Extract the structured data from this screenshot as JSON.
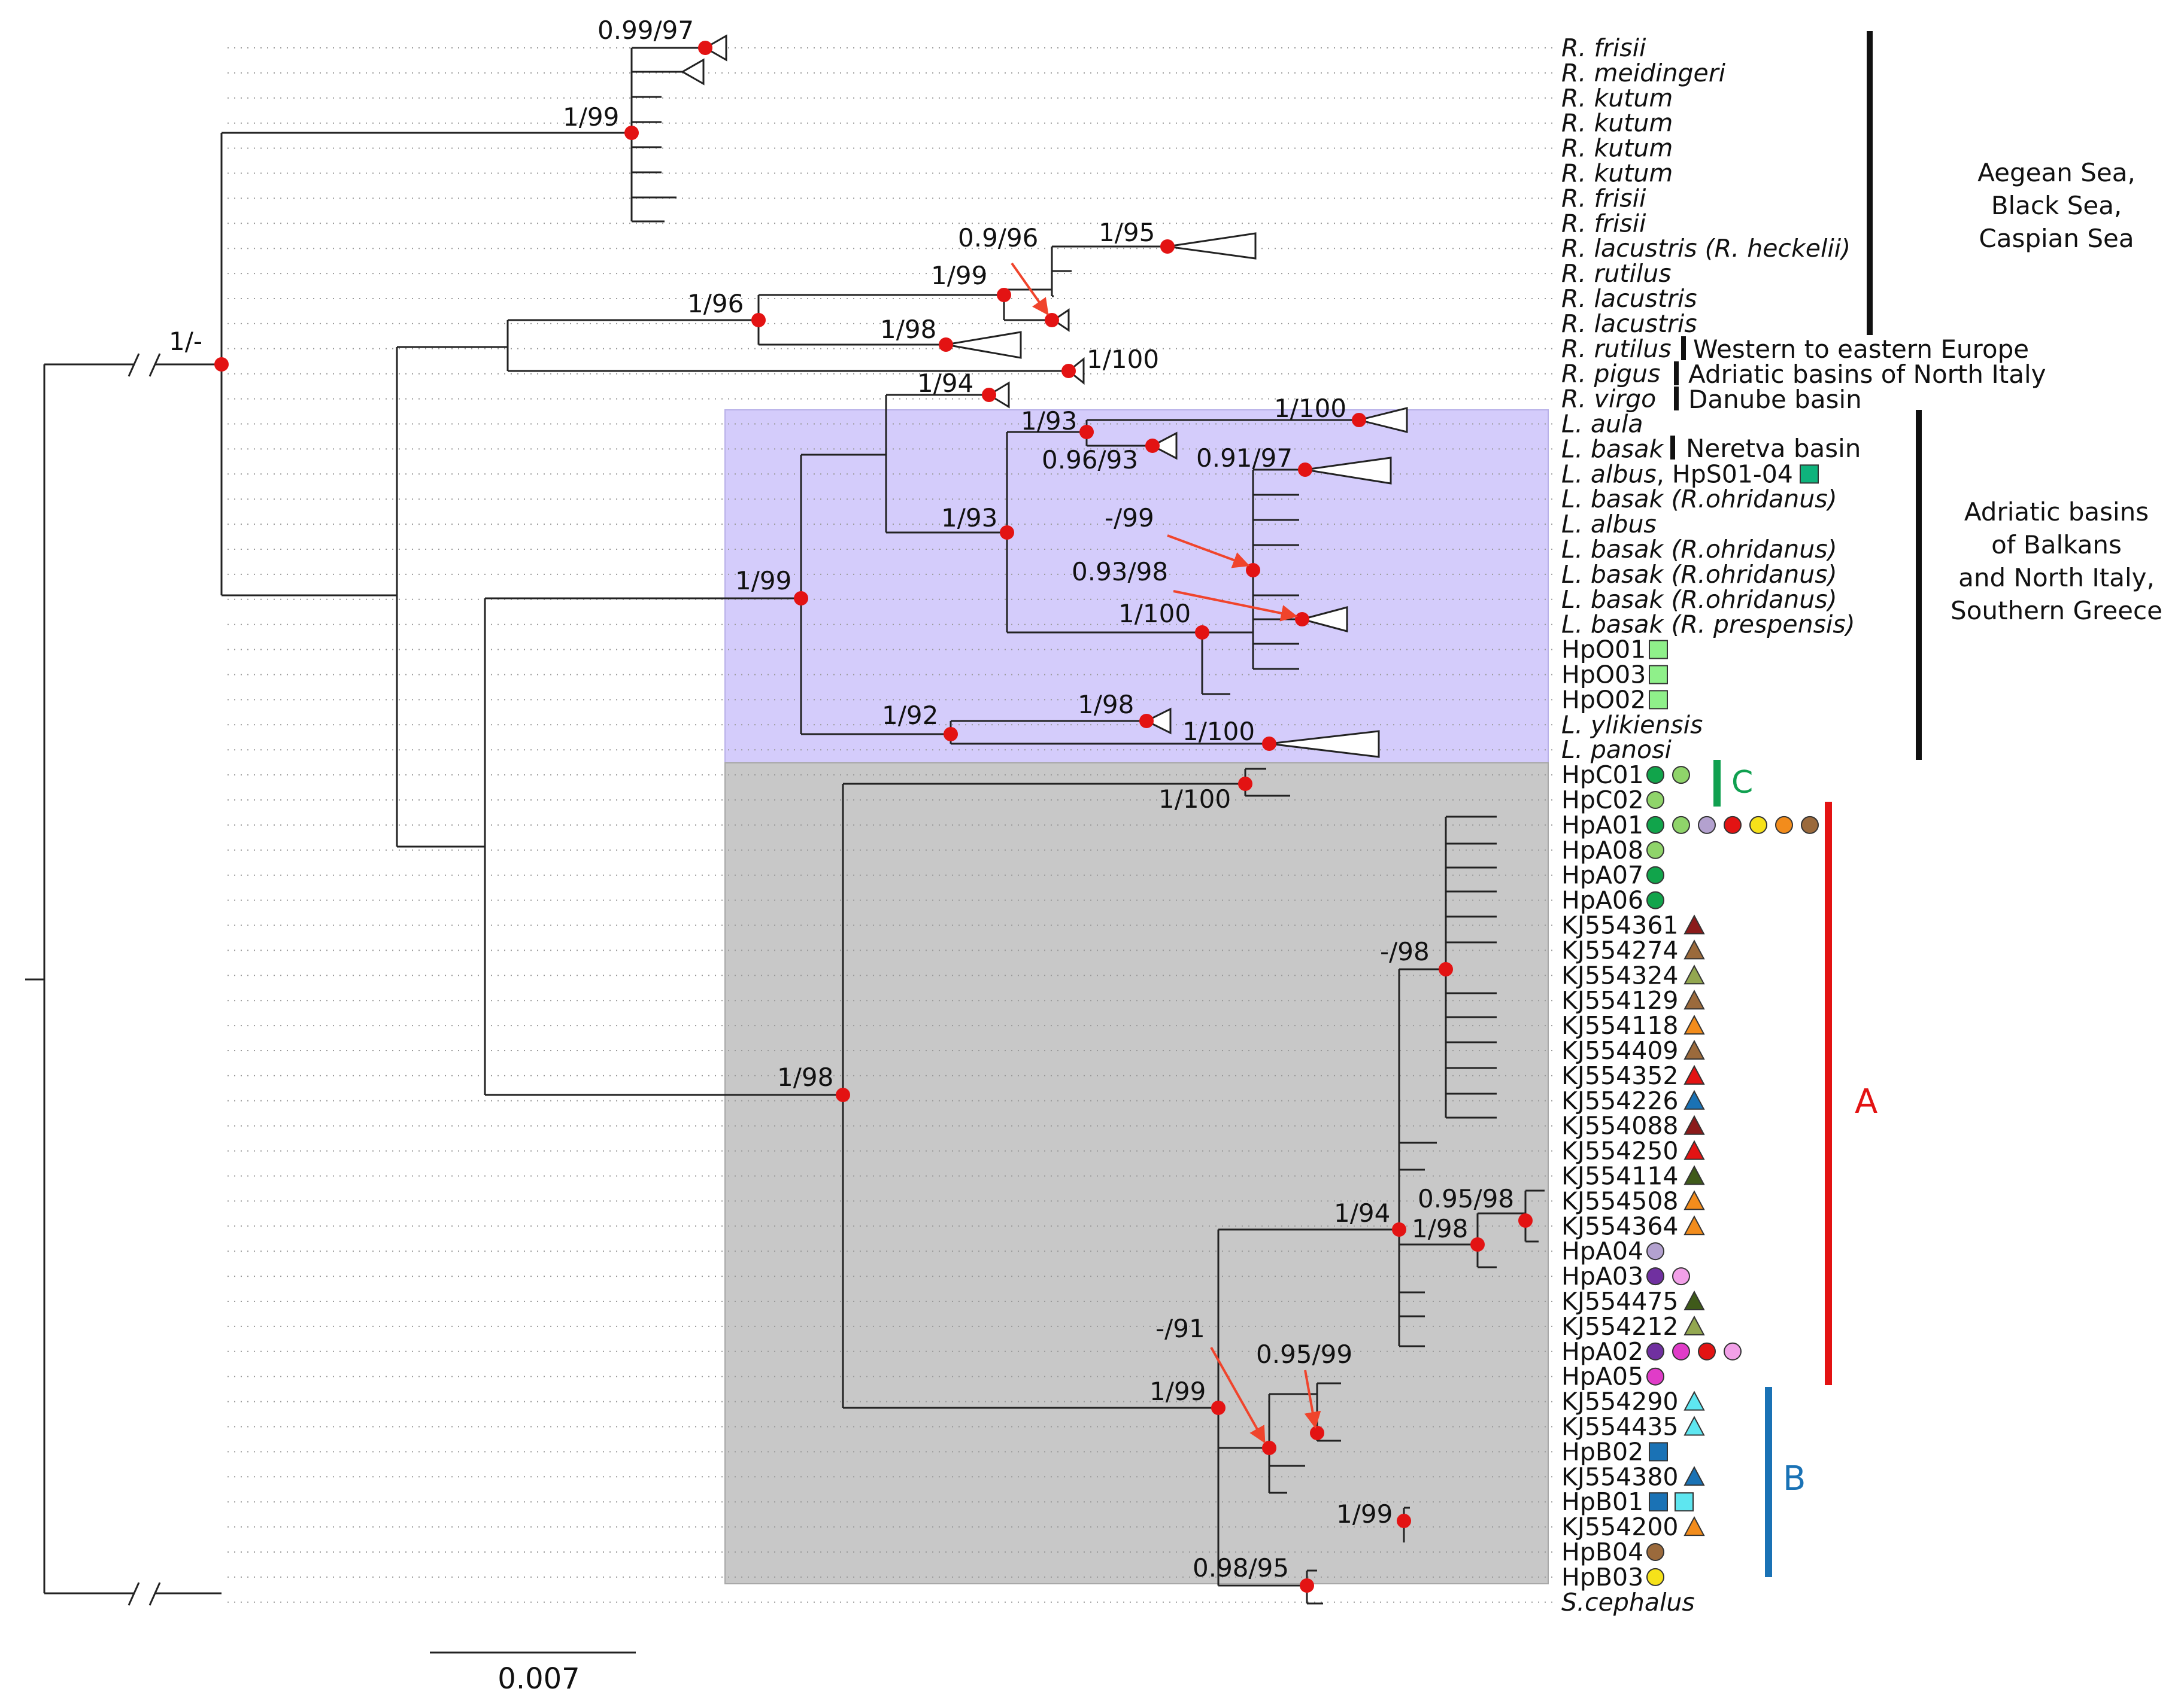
{
  "bootstrap": {
    "root": "1/-",
    "rutilus_group": "1/99",
    "frisii": "0.99/97",
    "r_1_96": "1/96",
    "r_1_99": "1/99",
    "r_0_9_96": "0.9/96",
    "r_1_95": "1/95",
    "r_1_98": "1/98",
    "pigus": "1/100",
    "virgo": "1/94",
    "adriatic": "1/99",
    "l_1_93a": "1/93",
    "l_1_100a": "1/100",
    "l_0_96_93": "0.96/93",
    "l_1_93b": "1/93",
    "l_0_91_97": "0.91/97",
    "l_m_99": "-/99",
    "l_0_93_98": "0.93/98",
    "l_1_100b": "1/100",
    "l_1_92": "1/92",
    "l_1_98": "1/98",
    "l_1_100c": "1/100",
    "c_1_100": "1/100",
    "grey_1_98": "1/98",
    "a_m_98": "-/98",
    "a_0_95_98": "0.95/98",
    "a_1_94": "1/94",
    "a_1_98": "1/98",
    "b_m_91": "-/91",
    "b_0_95_99": "0.95/99",
    "b_1_99a": "1/99",
    "b_1_99b": "1/99",
    "b_0_98_95": "0.98/95"
  },
  "taxa": [
    {
      "label": "R. frisii",
      "italic": true
    },
    {
      "label": "R. meidingeri",
      "italic": true
    },
    {
      "label": "R. kutum",
      "italic": true
    },
    {
      "label": "R. kutum",
      "italic": true
    },
    {
      "label": "R. kutum",
      "italic": true
    },
    {
      "label": "R. kutum",
      "italic": true
    },
    {
      "label": "R. frisii",
      "italic": true
    },
    {
      "label": "R. frisii",
      "italic": true
    },
    {
      "label": "R. lacustris (R. heckelii)",
      "italic": true
    },
    {
      "label": "R. rutilus",
      "italic": true
    },
    {
      "label": "R. lacustris",
      "italic": true
    },
    {
      "label": "R. lacustris",
      "italic": true
    },
    {
      "label": "R. rutilus",
      "italic": true
    },
    {
      "label": "R. pigus",
      "italic": true
    },
    {
      "label": "R. virgo",
      "italic": true
    },
    {
      "label": "L. aula",
      "italic": true
    },
    {
      "label": "L. basak",
      "italic": true
    },
    {
      "label": "L. albus",
      "italic": true,
      "suffix": ", HpS01-04"
    },
    {
      "label": "L. basak (R.ohridanus)",
      "italic": true
    },
    {
      "label": "L. albus",
      "italic": true
    },
    {
      "label": "L. basak (R.ohridanus)",
      "italic": true
    },
    {
      "label": "L. basak (R.ohridanus)",
      "italic": true
    },
    {
      "label": "L. basak (R.ohridanus)",
      "italic": true
    },
    {
      "label": "L. basak (R. prespensis)",
      "italic": true
    },
    {
      "label": "HpO01",
      "italic": false
    },
    {
      "label": "HpO03",
      "italic": false
    },
    {
      "label": "HpO02",
      "italic": false
    },
    {
      "label": "L. ylikiensis",
      "italic": true
    },
    {
      "label": "L. panosi",
      "italic": true
    },
    {
      "label": "HpC01",
      "italic": false
    },
    {
      "label": "HpC02",
      "italic": false
    },
    {
      "label": "HpA01",
      "italic": false
    },
    {
      "label": "HpA08",
      "italic": false
    },
    {
      "label": "HpA07",
      "italic": false
    },
    {
      "label": "HpA06",
      "italic": false
    },
    {
      "label": "KJ554361",
      "italic": false
    },
    {
      "label": "KJ554274",
      "italic": false
    },
    {
      "label": "KJ554324",
      "italic": false
    },
    {
      "label": "KJ554129",
      "italic": false
    },
    {
      "label": "KJ554118",
      "italic": false
    },
    {
      "label": "KJ554409",
      "italic": false
    },
    {
      "label": "KJ554352",
      "italic": false
    },
    {
      "label": "KJ554226",
      "italic": false
    },
    {
      "label": "KJ554088",
      "italic": false
    },
    {
      "label": "KJ554250",
      "italic": false
    },
    {
      "label": "KJ554114",
      "italic": false
    },
    {
      "label": "KJ554508",
      "italic": false
    },
    {
      "label": "KJ554364",
      "italic": false
    },
    {
      "label": "HpA04",
      "italic": false
    },
    {
      "label": "HpA03",
      "italic": false
    },
    {
      "label": "KJ554475",
      "italic": false
    },
    {
      "label": "KJ554212",
      "italic": false
    },
    {
      "label": "HpA02",
      "italic": false
    },
    {
      "label": "HpA05",
      "italic": false
    },
    {
      "label": "KJ554290",
      "italic": false
    },
    {
      "label": "KJ554435",
      "italic": false
    },
    {
      "label": "HpB02",
      "italic": false
    },
    {
      "label": "KJ554380",
      "italic": false
    },
    {
      "label": "HpB01",
      "italic": false
    },
    {
      "label": "KJ554200",
      "italic": false
    },
    {
      "label": "HpB04",
      "italic": false
    },
    {
      "label": "HpB03",
      "italic": false
    },
    {
      "label": "S.cephalus",
      "italic": true
    }
  ],
  "inline_regions": {
    "western_europe": "Western to eastern Europe",
    "north_italy": "Adriatic basins of North Italy",
    "danube": "Danube basin",
    "neretva": "Neretva basin"
  },
  "regions": {
    "aegean": [
      "Aegean Sea,",
      "Black Sea,",
      "Caspian Sea"
    ],
    "balkans": [
      "Adriatic basins",
      "of Balkans",
      "and North Italy,",
      "Southern Greece"
    ]
  },
  "clades": {
    "c": "C",
    "a": "A",
    "b": "B"
  },
  "scale": {
    "label": "0.007"
  },
  "colors": {
    "node": "#e31313",
    "purple_bg": "#d4ccfb",
    "grey_bg": "#c8c8c8",
    "clade_c": "#10a050",
    "clade_a": "#e31313",
    "clade_b": "#1a72b5"
  }
}
